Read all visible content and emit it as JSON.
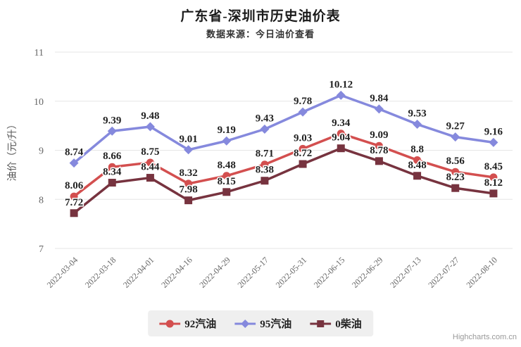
{
  "chart_data": {
    "type": "line",
    "title": "广东省-深圳市历史油价表",
    "subtitle": "数据来源：今日油价查看",
    "ylabel": "油价（元/升）",
    "xlabel": "",
    "ylim": [
      7,
      11
    ],
    "yticks": [
      7,
      8,
      9,
      10,
      11
    ],
    "grid": true,
    "legend_position": "bottom",
    "categories": [
      "2022-03-04",
      "2022-03-18",
      "2022-04-01",
      "2022-04-16",
      "2022-04-29",
      "2022-05-17",
      "2022-05-31",
      "2022-06-15",
      "2022-06-29",
      "2022-07-13",
      "2022-07-27",
      "2022-08-10"
    ],
    "series": [
      {
        "name": "92汽油",
        "color": "#d34f4f",
        "marker": "circle",
        "values": [
          8.06,
          8.66,
          8.75,
          8.32,
          8.48,
          8.71,
          9.03,
          9.34,
          9.09,
          8.8,
          8.56,
          8.45
        ]
      },
      {
        "name": "95汽油",
        "color": "#8589dd",
        "marker": "diamond",
        "values": [
          8.74,
          9.39,
          9.48,
          9.01,
          9.19,
          9.43,
          9.78,
          10.12,
          9.84,
          9.53,
          9.27,
          9.16
        ]
      },
      {
        "name": "0柴油",
        "color": "#77333f",
        "marker": "square",
        "values": [
          7.72,
          8.34,
          8.44,
          7.98,
          8.15,
          8.38,
          8.72,
          9.04,
          8.78,
          8.48,
          8.23,
          8.12
        ]
      }
    ]
  },
  "credit": "Highcharts.com.cn",
  "colors": {
    "grid": "#e6e6e6",
    "axis_label": "#666666",
    "axis_title": "#555555",
    "data_label": "#222222",
    "legend_bg": "#efefef"
  }
}
